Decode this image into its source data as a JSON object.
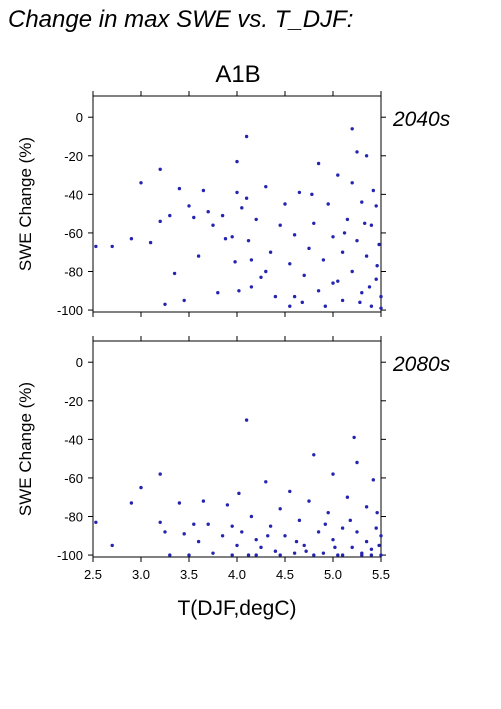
{
  "chart_data": [
    {
      "type": "scatter",
      "title": "Change in max SWE vs. T_DJF:",
      "subtitle": "A1B",
      "panel_label": "2040s",
      "y_label": "SWE Change (%)",
      "color": "#2424b0",
      "xlim": [
        2.5,
        5.5
      ],
      "xticks": [
        2.5,
        3,
        3.5,
        4,
        4.5,
        5,
        5.5
      ],
      "ylim": [
        -101,
        11
      ],
      "yticks": [
        0,
        -20,
        -40,
        -60,
        -80,
        -100
      ],
      "x": [
        2.53,
        2.7,
        2.9,
        3.0,
        3.1,
        3.2,
        3.2,
        3.25,
        3.3,
        3.35,
        3.4,
        3.45,
        3.5,
        3.55,
        3.6,
        3.65,
        3.7,
        3.75,
        3.8,
        3.85,
        3.95,
        4.0,
        4.0,
        4.02,
        4.05,
        4.1,
        4.1,
        4.12,
        4.15,
        4.2,
        4.25,
        4.3,
        4.35,
        4.4,
        4.45,
        4.5,
        4.55,
        4.6,
        4.6,
        4.65,
        4.7,
        4.75,
        4.8,
        4.85,
        4.85,
        4.9,
        4.95,
        5.0,
        5.0,
        5.05,
        5.1,
        5.1,
        5.15,
        5.2,
        5.2,
        5.25,
        5.25,
        5.3,
        5.3,
        5.35,
        5.35,
        5.4,
        5.4,
        5.45,
        5.45,
        5.5,
        5.5,
        5.48,
        5.42,
        5.38,
        5.2,
        4.92,
        4.55,
        4.3,
        4.15,
        3.98,
        5.05,
        5.28,
        5.46,
        4.78,
        4.68,
        5.12,
        5.33,
        3.88
      ],
      "y": [
        -67,
        -67,
        -63,
        -34,
        -65,
        -27,
        -54,
        -97,
        -51,
        -81,
        -37,
        -95,
        -46,
        -52,
        -72,
        -38,
        -49,
        -56,
        -91,
        -51,
        -62,
        -23,
        -39,
        -90,
        -47,
        -10,
        -42,
        -64,
        -88,
        -53,
        -83,
        -36,
        -70,
        -93,
        -56,
        -45,
        -76,
        -61,
        -93,
        -39,
        -82,
        -68,
        -55,
        -24,
        -90,
        -74,
        -45,
        -62,
        -86,
        -30,
        -70,
        -95,
        -53,
        -6,
        -80,
        -18,
        -64,
        -44,
        -91,
        -20,
        -72,
        -56,
        -98,
        -84,
        -46,
        -93,
        -99,
        -66,
        -38,
        -88,
        -34,
        -98,
        -98,
        -80,
        -74,
        -75,
        -85,
        -96,
        -77,
        -40,
        -96,
        -60,
        -55,
        -63
      ]
    },
    {
      "type": "scatter",
      "panel_label": "2080s",
      "y_label": "SWE Change (%)",
      "x_label": "T(DJF,degC)",
      "color": "#2424b0",
      "xlim": [
        2.5,
        5.5
      ],
      "xticks": [
        2.5,
        {
          "value": 3,
          "label": "3.0"
        },
        3.5,
        {
          "value": 4,
          "label": "4.0"
        },
        4.5,
        {
          "value": 5,
          "label": "5.0"
        },
        5.5
      ],
      "ylim": [
        -101,
        11
      ],
      "yticks": [
        0,
        -20,
        -40,
        -60,
        -80,
        -100
      ],
      "x": [
        2.53,
        2.7,
        2.9,
        3.0,
        3.2,
        3.2,
        3.25,
        3.3,
        3.4,
        3.45,
        3.5,
        3.55,
        3.6,
        3.65,
        3.7,
        3.75,
        3.85,
        3.9,
        3.95,
        4.0,
        4.02,
        4.05,
        4.1,
        4.12,
        4.15,
        4.2,
        4.25,
        4.3,
        4.35,
        4.4,
        4.45,
        4.5,
        4.55,
        4.6,
        4.65,
        4.7,
        4.75,
        4.8,
        4.85,
        4.9,
        4.95,
        5.0,
        5.0,
        5.05,
        5.1,
        5.15,
        5.2,
        5.22,
        5.25,
        5.25,
        5.3,
        5.35,
        5.35,
        5.4,
        5.42,
        5.45,
        5.48,
        5.5,
        5.5,
        5.1,
        4.8,
        4.45,
        4.2,
        3.95,
        5.3,
        5.46,
        4.92,
        4.62,
        5.18,
        4.32,
        5.4,
        5.02,
        4.72
      ],
      "y": [
        -83,
        -95,
        -73,
        -65,
        -58,
        -83,
        -88,
        -100,
        -73,
        -89,
        -100,
        -84,
        -93,
        -72,
        -84,
        -99,
        -90,
        -74,
        -85,
        -95,
        -68,
        -88,
        -30,
        -100,
        -80,
        -92,
        -96,
        -62,
        -85,
        -98,
        -76,
        -90,
        -67,
        -99,
        -82,
        -95,
        -72,
        -48,
        -88,
        -99,
        -78,
        -92,
        -58,
        -100,
        -86,
        -70,
        -96,
        -39,
        -52,
        -88,
        -99,
        -75,
        -93,
        -100,
        -61,
        -86,
        -95,
        -100,
        -90,
        -100,
        -100,
        -100,
        -100,
        -100,
        -100,
        -78,
        -84,
        -93,
        -82,
        -90,
        -97,
        -96,
        -98
      ]
    }
  ]
}
